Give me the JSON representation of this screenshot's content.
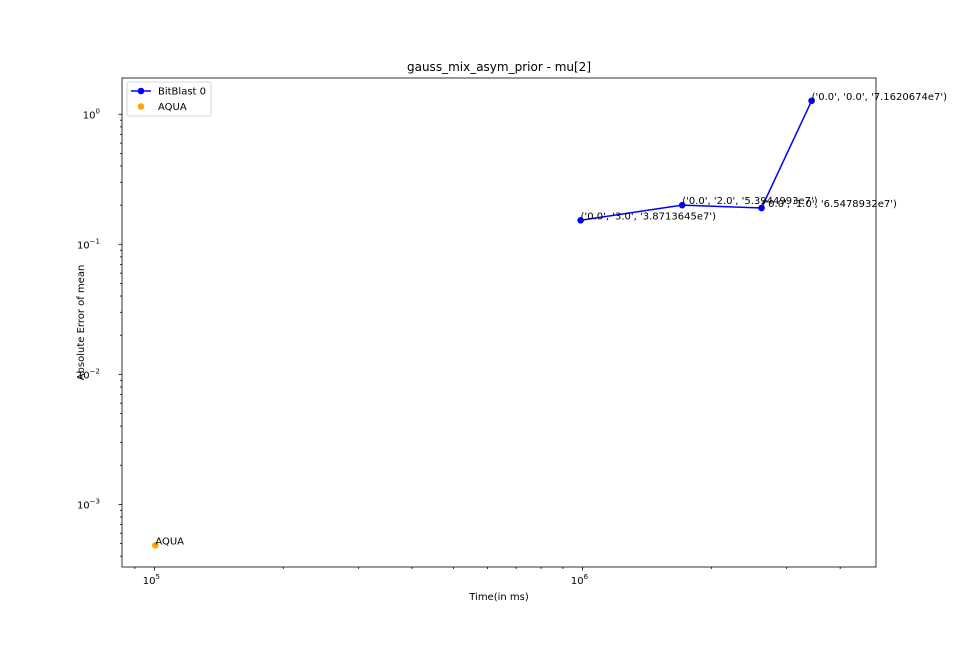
{
  "chart_data": {
    "type": "line",
    "title": "gauss_mix_asym_prior - mu[2]",
    "xlabel": "Time(in ms)",
    "ylabel": "Absolute Error of mean",
    "xscale": "log",
    "yscale": "log",
    "xlim": [
      84000,
      4850000
    ],
    "ylim": [
      0.00033,
      1.9
    ],
    "x_ticks": [
      {
        "value": 100000,
        "base": "10",
        "exp": "5"
      },
      {
        "value": 1000000,
        "base": "10",
        "exp": "6"
      }
    ],
    "y_ticks": [
      {
        "value": 0.001,
        "base": "10",
        "exp": "−3"
      },
      {
        "value": 0.01,
        "base": "10",
        "exp": "−2"
      },
      {
        "value": 0.1,
        "base": "10",
        "exp": "−1"
      },
      {
        "value": 1,
        "base": "10",
        "exp": "0"
      }
    ],
    "grid": false,
    "legend_position": "top-left",
    "series": [
      {
        "name": "BitBlast 0",
        "color": "#0000ff",
        "marker": "circle",
        "line": true,
        "points": [
          {
            "x": 990000,
            "y": 0.153,
            "label": "('0.0', '3.0', '3.8713645e7')"
          },
          {
            "x": 1710000,
            "y": 0.2,
            "label": "('0.0', '2.0', '5.3944993e7')"
          },
          {
            "x": 2620000,
            "y": 0.19,
            "label": "('0.0', '1.0', '6.5478932e7')"
          },
          {
            "x": 3430000,
            "y": 1.27,
            "label": "('0.0', '0.0', '7.1620674e7')"
          }
        ]
      },
      {
        "name": "AQUA",
        "color": "#ffa500",
        "marker": "circle",
        "line": false,
        "points": [
          {
            "x": 100500,
            "y": 0.000485,
            "label": "AQUA"
          }
        ]
      }
    ]
  }
}
